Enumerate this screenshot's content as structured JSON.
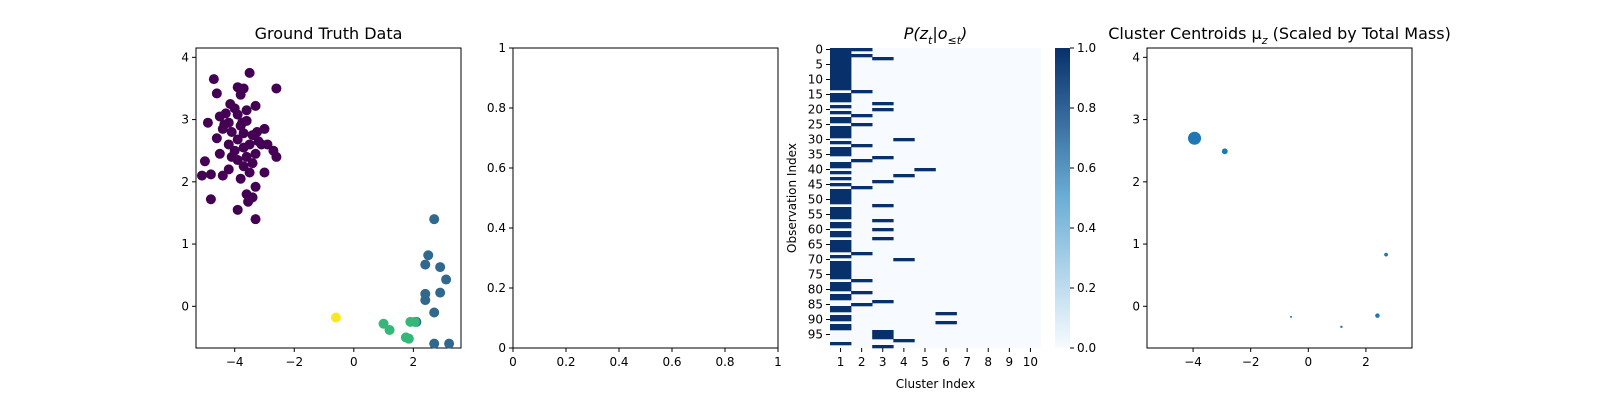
{
  "chart_data": [
    {
      "type": "scatter",
      "title": "Ground Truth Data",
      "xlim": [
        -5.3,
        3.6
      ],
      "ylim": [
        -0.67,
        4.15
      ],
      "xticks": [
        -4,
        -2,
        0,
        2
      ],
      "yticks": [
        0,
        1,
        2,
        3,
        4
      ],
      "colors": [
        "#440154",
        "#31688e",
        "#35b779",
        "#fde725"
      ],
      "series": [
        {
          "cluster": 0,
          "points": [
            [
              -4.7,
              3.65
            ],
            [
              -3.5,
              3.75
            ],
            [
              -3.9,
              3.52
            ],
            [
              -3.7,
              3.5
            ],
            [
              -2.6,
              3.5
            ],
            [
              -4.6,
              3.42
            ],
            [
              -3.8,
              3.4
            ],
            [
              -3.3,
              3.22
            ],
            [
              -4.0,
              3.18
            ],
            [
              -3.6,
              3.15
            ],
            [
              -4.3,
              3.1
            ],
            [
              -3.9,
              3.08
            ],
            [
              -4.5,
              3.05
            ],
            [
              -4.9,
              2.95
            ],
            [
              -4.2,
              2.95
            ],
            [
              -3.6,
              2.98
            ],
            [
              -3.8,
              2.9
            ],
            [
              -3.0,
              2.85
            ],
            [
              -4.4,
              2.85
            ],
            [
              -4.1,
              2.8
            ],
            [
              -3.7,
              2.78
            ],
            [
              -3.4,
              2.75
            ],
            [
              -4.6,
              2.7
            ],
            [
              -3.9,
              2.68
            ],
            [
              -3.2,
              2.65
            ],
            [
              -3.5,
              2.6
            ],
            [
              -2.9,
              2.6
            ],
            [
              -4.2,
              2.6
            ],
            [
              -3.7,
              2.55
            ],
            [
              -4.0,
              2.5
            ],
            [
              -3.3,
              2.45
            ],
            [
              -2.7,
              2.5
            ],
            [
              -4.5,
              2.45
            ],
            [
              -3.6,
              2.4
            ],
            [
              -4.1,
              2.4
            ],
            [
              -2.6,
              2.4
            ],
            [
              -3.9,
              2.35
            ],
            [
              -3.4,
              2.3
            ],
            [
              -5.0,
              2.33
            ],
            [
              -3.7,
              2.25
            ],
            [
              -4.2,
              2.2
            ],
            [
              -3.5,
              2.15
            ],
            [
              -3.0,
              2.15
            ],
            [
              -4.8,
              2.12
            ],
            [
              -5.1,
              2.1
            ],
            [
              -4.4,
              2.1
            ],
            [
              -3.8,
              2.05
            ],
            [
              -3.3,
              1.92
            ],
            [
              -3.6,
              1.8
            ],
            [
              -3.4,
              1.75
            ],
            [
              -4.8,
              1.72
            ],
            [
              -3.55,
              1.68
            ],
            [
              -3.9,
              1.55
            ],
            [
              -3.3,
              1.4
            ],
            [
              -4.35,
              2.92
            ],
            [
              -3.25,
              2.8
            ],
            [
              -4.15,
              3.25
            ],
            [
              -3.75,
              2.95
            ],
            [
              -3.1,
              2.6
            ]
          ]
        },
        {
          "cluster": 1,
          "points": [
            [
              2.7,
              1.4
            ],
            [
              2.5,
              0.82
            ],
            [
              2.4,
              0.67
            ],
            [
              2.9,
              0.63
            ],
            [
              3.1,
              0.43
            ],
            [
              2.4,
              0.2
            ],
            [
              2.9,
              0.22
            ],
            [
              2.4,
              0.1
            ],
            [
              2.7,
              -0.1
            ],
            [
              2.1,
              -0.25
            ],
            [
              2.7,
              -0.6
            ],
            [
              3.2,
              -0.6
            ]
          ]
        },
        {
          "cluster": 2,
          "points": [
            [
              1.0,
              -0.28
            ],
            [
              1.2,
              -0.38
            ],
            [
              1.9,
              -0.25
            ],
            [
              1.75,
              -0.5
            ],
            [
              1.85,
              -0.52
            ],
            [
              2.05,
              -0.25
            ]
          ]
        },
        {
          "cluster": 3,
          "points": [
            [
              -0.6,
              -0.18
            ]
          ]
        }
      ]
    },
    {
      "type": "scatter",
      "title": "",
      "xlim": [
        0,
        1
      ],
      "ylim": [
        0,
        1
      ],
      "xticks": [
        0.0,
        0.2,
        0.4,
        0.6,
        0.8,
        1.0
      ],
      "yticks": [
        0.0,
        0.2,
        0.4,
        0.6,
        0.8,
        1.0
      ],
      "series": []
    },
    {
      "type": "heatmap",
      "title_main": "P(z",
      "title_sub1": "t",
      "title_mid": "|o",
      "title_sub2": "≤t",
      "title_end": ")",
      "xlabel": "Cluster Index",
      "ylabel": "Observation Index",
      "n_rows": 100,
      "n_cols": 10,
      "x_ticks": [
        "1",
        "2",
        "3",
        "4",
        "5",
        "6",
        "7",
        "8",
        "9",
        "10"
      ],
      "y_ticks": [
        0,
        5,
        10,
        15,
        20,
        25,
        30,
        35,
        40,
        45,
        50,
        55,
        60,
        65,
        70,
        75,
        80,
        85,
        90,
        95
      ],
      "cells": [
        [
          0,
          0
        ],
        [
          0,
          1
        ],
        [
          1,
          0
        ],
        [
          2,
          0
        ],
        [
          2,
          1
        ],
        [
          3,
          0
        ],
        [
          3,
          2
        ],
        [
          4,
          0
        ],
        [
          5,
          0
        ],
        [
          6,
          0
        ],
        [
          7,
          0
        ],
        [
          8,
          0
        ],
        [
          9,
          0
        ],
        [
          10,
          0
        ],
        [
          11,
          0
        ],
        [
          12,
          0
        ],
        [
          13,
          0
        ],
        [
          14,
          1
        ],
        [
          15,
          0
        ],
        [
          16,
          0
        ],
        [
          17,
          0
        ],
        [
          18,
          2
        ],
        [
          19,
          0
        ],
        [
          20,
          2
        ],
        [
          21,
          0
        ],
        [
          22,
          1
        ],
        [
          23,
          0
        ],
        [
          24,
          0
        ],
        [
          25,
          1
        ],
        [
          26,
          0
        ],
        [
          27,
          0
        ],
        [
          28,
          0
        ],
        [
          29,
          0
        ],
        [
          30,
          3
        ],
        [
          31,
          0
        ],
        [
          32,
          1
        ],
        [
          33,
          0
        ],
        [
          34,
          0
        ],
        [
          35,
          0
        ],
        [
          36,
          2
        ],
        [
          37,
          1
        ],
        [
          38,
          0
        ],
        [
          39,
          0
        ],
        [
          40,
          4
        ],
        [
          41,
          0
        ],
        [
          42,
          3
        ],
        [
          43,
          0
        ],
        [
          44,
          2
        ],
        [
          45,
          0
        ],
        [
          46,
          1
        ],
        [
          47,
          0
        ],
        [
          48,
          0
        ],
        [
          49,
          0
        ],
        [
          50,
          0
        ],
        [
          51,
          0
        ],
        [
          52,
          2
        ],
        [
          53,
          0
        ],
        [
          54,
          0
        ],
        [
          55,
          0
        ],
        [
          56,
          0
        ],
        [
          57,
          2
        ],
        [
          58,
          0
        ],
        [
          59,
          0
        ],
        [
          60,
          2
        ],
        [
          61,
          0
        ],
        [
          62,
          0
        ],
        [
          63,
          2
        ],
        [
          64,
          0
        ],
        [
          65,
          0
        ],
        [
          66,
          0
        ],
        [
          67,
          0
        ],
        [
          68,
          1
        ],
        [
          69,
          0
        ],
        [
          70,
          3
        ],
        [
          71,
          0
        ],
        [
          72,
          0
        ],
        [
          73,
          0
        ],
        [
          74,
          0
        ],
        [
          75,
          0
        ],
        [
          76,
          0
        ],
        [
          77,
          1
        ],
        [
          78,
          0
        ],
        [
          79,
          0
        ],
        [
          80,
          0
        ],
        [
          81,
          1
        ],
        [
          82,
          0
        ],
        [
          83,
          0
        ],
        [
          84,
          2
        ],
        [
          85,
          1
        ],
        [
          86,
          0
        ],
        [
          87,
          0
        ],
        [
          88,
          5
        ],
        [
          89,
          0
        ],
        [
          90,
          0
        ],
        [
          91,
          5
        ],
        [
          92,
          0
        ],
        [
          93,
          0
        ],
        [
          94,
          2
        ],
        [
          95,
          2
        ],
        [
          96,
          2
        ],
        [
          97,
          3
        ],
        [
          98,
          0
        ],
        [
          99,
          2
        ]
      ],
      "colorbar": {
        "ticks": [
          0.0,
          0.2,
          0.4,
          0.6,
          0.8,
          1.0
        ],
        "low_color": "#f7fbff",
        "high_color": "#08306b"
      }
    },
    {
      "type": "scatter",
      "title": "Cluster Centroids μ",
      "title_sub": "z",
      "title_suffix": " (Scaled by Total Mass)",
      "xlim": [
        -5.6,
        3.6
      ],
      "ylim": [
        -0.67,
        4.15
      ],
      "xticks": [
        -4,
        -2,
        0,
        2
      ],
      "yticks": [
        0,
        1,
        2,
        3,
        4
      ],
      "color": "#1f77b4",
      "points": [
        {
          "x": -3.95,
          "y": 2.7,
          "mass": 59
        },
        {
          "x": -2.9,
          "y": 2.49,
          "mass": 12
        },
        {
          "x": 2.7,
          "y": 0.83,
          "mass": 5
        },
        {
          "x": 2.4,
          "y": -0.15,
          "mass": 7
        },
        {
          "x": 1.15,
          "y": -0.33,
          "mass": 2
        },
        {
          "x": -0.6,
          "y": -0.17,
          "mass": 1
        }
      ]
    }
  ]
}
